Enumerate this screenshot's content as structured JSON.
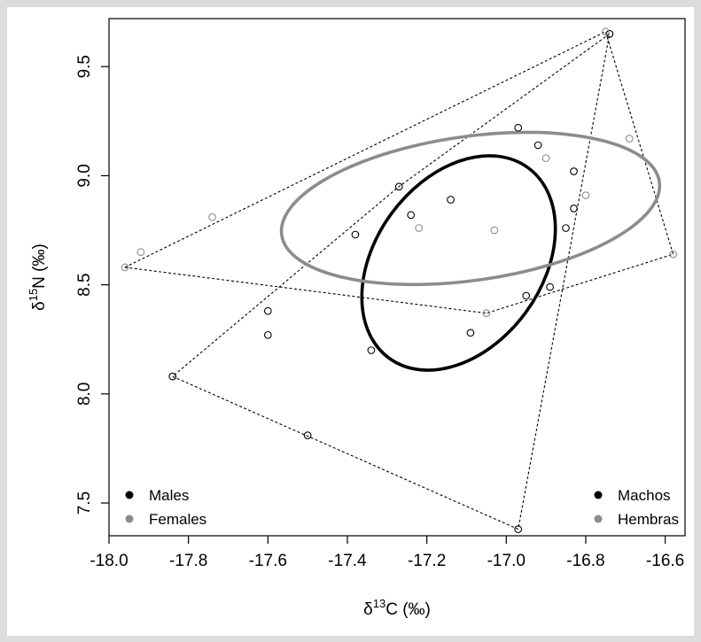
{
  "chart_data": {
    "type": "scatter",
    "xlim": [
      -18.0,
      -16.55
    ],
    "ylim": [
      7.35,
      9.72
    ],
    "x_ticks": [
      -18.0,
      -17.8,
      -17.6,
      -17.4,
      -17.2,
      -17.0,
      -16.8,
      -16.6
    ],
    "x_tick_labels": [
      "-18.0",
      "-17.8",
      "-17.6",
      "-17.4",
      "-17.2",
      "-17.0",
      "-16.8",
      "-16.6"
    ],
    "y_ticks": [
      7.5,
      8.0,
      8.5,
      9.0,
      9.5
    ],
    "y_tick_labels": [
      "7.5",
      "8.0",
      "8.5",
      "9.0",
      "9.5"
    ],
    "xlabel": {
      "delta": "δ",
      "sup": "13",
      "rest": "C (‰)"
    },
    "ylabel": {
      "delta": "δ",
      "sup": "15",
      "rest": "N (‰)"
    },
    "grid": false,
    "legend_left": {
      "placement": "bottom-left",
      "entries": [
        {
          "label": "Males",
          "color": "#000000"
        },
        {
          "label": "Females",
          "color": "#8c8c8c"
        }
      ]
    },
    "legend_right": {
      "placement": "bottom-right",
      "entries": [
        {
          "label": "Machos",
          "color": "#000000"
        },
        {
          "label": "Hembras",
          "color": "#8c8c8c"
        }
      ]
    },
    "series": [
      {
        "name": "Males",
        "color": "#000000",
        "points": [
          [
            -17.84,
            8.08
          ],
          [
            -17.6,
            8.38
          ],
          [
            -17.6,
            8.27
          ],
          [
            -17.5,
            7.81
          ],
          [
            -17.38,
            8.73
          ],
          [
            -17.34,
            8.2
          ],
          [
            -17.27,
            8.95
          ],
          [
            -17.24,
            8.82
          ],
          [
            -17.14,
            8.89
          ],
          [
            -17.09,
            8.28
          ],
          [
            -16.97,
            9.22
          ],
          [
            -16.97,
            7.38
          ],
          [
            -16.95,
            8.45
          ],
          [
            -16.92,
            9.14
          ],
          [
            -16.89,
            8.49
          ],
          [
            -16.85,
            8.76
          ],
          [
            -16.83,
            9.02
          ],
          [
            -16.83,
            8.85
          ],
          [
            -16.74,
            9.65
          ]
        ],
        "hull": [
          [
            -17.84,
            8.08
          ],
          [
            -16.97,
            7.38
          ],
          [
            -16.74,
            9.65
          ],
          [
            -17.27,
            8.95
          ]
        ],
        "ellipse": {
          "center": [
            -17.12,
            8.6
          ],
          "semi_axes": [
            0.21,
            0.54
          ],
          "angle_deg": 36
        }
      },
      {
        "name": "Females",
        "color": "#8c8c8c",
        "points": [
          [
            -17.96,
            8.58
          ],
          [
            -17.92,
            8.65
          ],
          [
            -17.74,
            8.81
          ],
          [
            -17.22,
            8.76
          ],
          [
            -17.05,
            8.37
          ],
          [
            -17.03,
            8.75
          ],
          [
            -16.9,
            9.08
          ],
          [
            -16.8,
            8.91
          ],
          [
            -16.75,
            9.66
          ],
          [
            -16.69,
            9.17
          ],
          [
            -16.58,
            8.64
          ]
        ],
        "hull": [
          [
            -17.96,
            8.58
          ],
          [
            -16.75,
            9.66
          ],
          [
            -16.58,
            8.64
          ],
          [
            -17.05,
            8.37
          ]
        ],
        "ellipse": {
          "center": [
            -17.09,
            8.85
          ],
          "semi_axes": [
            0.48,
            0.33
          ],
          "angle_deg": -8
        }
      }
    ]
  }
}
